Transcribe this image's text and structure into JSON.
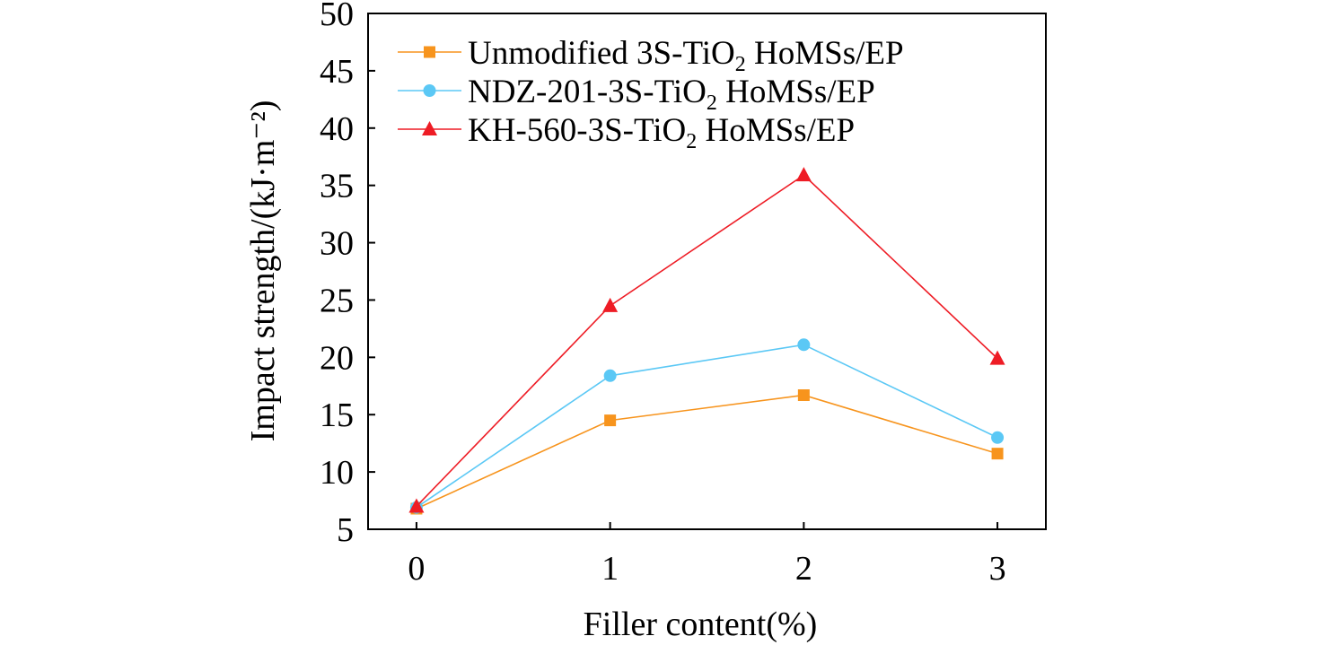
{
  "chart_data": {
    "type": "line",
    "title": "",
    "xlabel": "Filler content(%)",
    "ylabel": "Impact strength/(kJ·m⁻²)",
    "x": [
      0,
      1,
      2,
      3
    ],
    "xlim": [
      -0.25,
      3.25
    ],
    "ylim": [
      5,
      50
    ],
    "xticks": [
      0,
      1,
      2,
      3
    ],
    "yticks": [
      5,
      10,
      15,
      20,
      25,
      30,
      35,
      40,
      45,
      50
    ],
    "grid": false,
    "legend_position": "top-left",
    "series": [
      {
        "name": "Unmodified 3S-TiO2 HoMSs/EP",
        "label_pre": "Unmodified 3S-TiO",
        "label_sub": "2",
        "label_post": " HoMSs/EP",
        "marker": "square",
        "color": "#f7941d",
        "values": [
          6.8,
          14.5,
          16.7,
          11.6
        ]
      },
      {
        "name": "NDZ-201-3S-TiO2 HoMSs/EP",
        "label_pre": "NDZ-201-3S-TiO",
        "label_sub": "2",
        "label_post": " HoMSs/EP",
        "marker": "circle",
        "color": "#5bc8f5",
        "values": [
          6.9,
          18.4,
          21.1,
          13.0
        ]
      },
      {
        "name": "KH-560-3S-TiO2 HoMSs/EP",
        "label_pre": "KH-560-3S-TiO",
        "label_sub": "2",
        "label_post": " HoMSs/EP",
        "marker": "triangle",
        "color": "#ee1c25",
        "values": [
          7.0,
          24.5,
          35.9,
          19.9
        ]
      }
    ]
  }
}
